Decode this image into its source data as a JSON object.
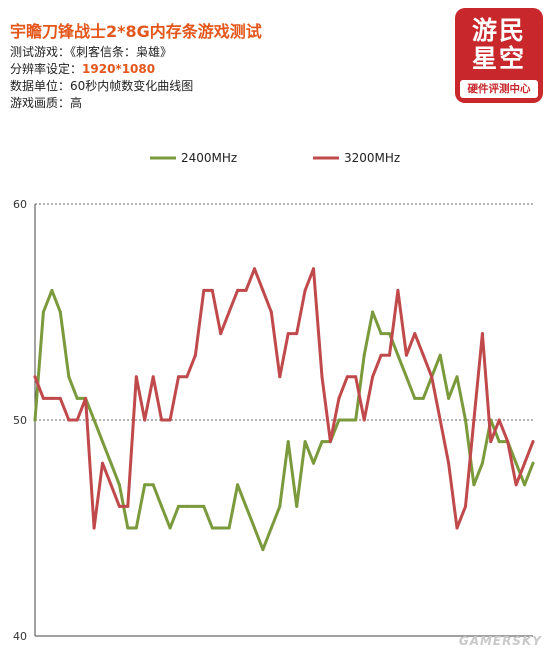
{
  "header": {
    "title": "宇瞻刀锋战士2*8G内存条游戏测试",
    "game_label": "测试游戏：",
    "game_value": "《刺客信条：枭雄》",
    "resolution_label": "分辨率设定：",
    "resolution_value": "1920*1080",
    "unit_label": "数据单位：",
    "unit_value": "60秒内帧数变化曲线图",
    "quality_label": "游戏画质：",
    "quality_value": "高"
  },
  "logo": {
    "line1": "游民",
    "line2": "星空",
    "line3": "硬件评测中心"
  },
  "watermark": "GAMERSKY",
  "chart_data": {
    "type": "line",
    "title": "",
    "xlabel": "",
    "ylabel": "",
    "ylim": [
      40,
      60
    ],
    "yticks": [
      40,
      50,
      60
    ],
    "grid": true,
    "legend_position": "top",
    "x": [
      1,
      2,
      3,
      4,
      5,
      6,
      7,
      8,
      9,
      10,
      11,
      12,
      13,
      14,
      15,
      16,
      17,
      18,
      19,
      20,
      21,
      22,
      23,
      24,
      25,
      26,
      27,
      28,
      29,
      30,
      31,
      32,
      33,
      34,
      35,
      36,
      37,
      38,
      39,
      40,
      41,
      42,
      43,
      44,
      45,
      46,
      47,
      48,
      49,
      50,
      51,
      52,
      53,
      54,
      55,
      56,
      57,
      58,
      59,
      60
    ],
    "series": [
      {
        "name": "2400MHz",
        "color": "#7a9a3c",
        "values": [
          50,
          55,
          56,
          55,
          52,
          51,
          51,
          50,
          49,
          48,
          47,
          45,
          45,
          47,
          47,
          46,
          45,
          46,
          46,
          46,
          46,
          45,
          45,
          45,
          47,
          46,
          45,
          44,
          45,
          46,
          49,
          46,
          49,
          48,
          49,
          49,
          50,
          50,
          50,
          53,
          55,
          54,
          54,
          53,
          52,
          51,
          51,
          52,
          53,
          51,
          52,
          50,
          47,
          48,
          50,
          49,
          49,
          48,
          47,
          48
        ]
      },
      {
        "name": "3200MHz",
        "color": "#c0494b",
        "values": [
          52,
          51,
          51,
          51,
          50,
          50,
          51,
          45,
          48,
          47,
          46,
          46,
          52,
          50,
          52,
          50,
          50,
          52,
          52,
          53,
          56,
          56,
          54,
          55,
          56,
          56,
          57,
          56,
          55,
          52,
          54,
          54,
          56,
          57,
          52,
          49,
          51,
          52,
          52,
          50,
          52,
          53,
          53,
          56,
          53,
          54,
          53,
          52,
          50,
          48,
          45,
          46,
          50,
          54,
          49,
          50,
          49,
          47,
          48,
          49
        ]
      }
    ]
  }
}
